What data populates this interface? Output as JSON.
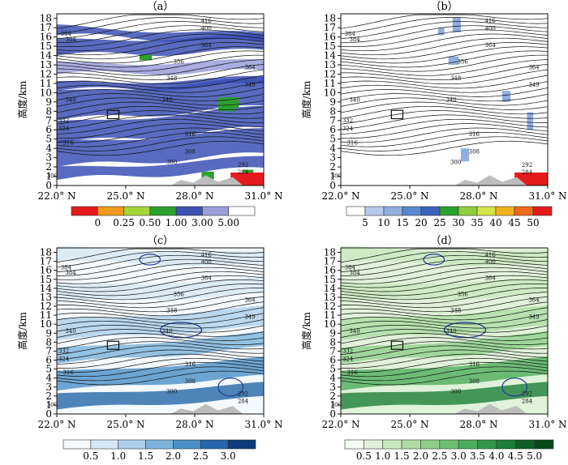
{
  "chart_data": [
    {
      "type": "heatmap",
      "panel_label": "（a）",
      "ylabel": "高度/km",
      "x_ticks": [
        "22.0° N",
        "25.0° N",
        "28.0° N",
        "31.0° N"
      ],
      "x_range": [
        22.0,
        31.0
      ],
      "y_ticks": [
        0,
        1,
        2,
        3,
        4,
        5,
        6,
        7,
        8,
        9,
        10,
        11,
        12,
        13,
        14,
        15,
        16,
        17,
        18
      ],
      "ylim": [
        0,
        18.5
      ],
      "colorbar": {
        "tick_labels": [
          "0",
          "0.25",
          "0.50",
          "1.00",
          "3.00",
          "5.00"
        ],
        "colors": [
          "#e41a1c",
          "#f29a1b",
          "#a6d43b",
          "#2ca02c",
          "#3c50b4",
          "#9a9fdb",
          "#ffffff"
        ]
      },
      "contour_labels": [
        "416",
        "400",
        "384",
        "384",
        "364",
        "356",
        "364",
        "348",
        "349",
        "340",
        "340",
        "332",
        "324",
        "316",
        "316",
        "308",
        "300",
        "292",
        "284",
        "300"
      ]
    },
    {
      "type": "heatmap",
      "panel_label": "（b）",
      "ylabel": "高度/km",
      "x_ticks": [
        "22.0° N",
        "25.0° N",
        "28.0° N",
        "31.0° N"
      ],
      "x_range": [
        22.0,
        31.0
      ],
      "y_ticks": [
        0,
        1,
        2,
        3,
        4,
        5,
        6,
        7,
        8,
        9,
        10,
        11,
        12,
        13,
        14,
        15,
        16,
        17,
        18
      ],
      "ylim": [
        0,
        18.5
      ],
      "colorbar": {
        "tick_labels": [
          "5",
          "10",
          "15",
          "20",
          "25",
          "30",
          "35",
          "40",
          "45",
          "50"
        ],
        "colors": [
          "#ffffff",
          "#b7c9ec",
          "#8eaee0",
          "#5b86d0",
          "#3a62b8",
          "#2ca02c",
          "#8fcf3c",
          "#d7e34a",
          "#f2b21b",
          "#ef6a1a",
          "#e41a1c"
        ]
      },
      "contour_labels": [
        "416",
        "400",
        "384",
        "384",
        "364",
        "356",
        "364",
        "348",
        "349",
        "340",
        "340",
        "332",
        "324",
        "316",
        "316",
        "308",
        "300",
        "292",
        "284",
        "300"
      ]
    },
    {
      "type": "heatmap",
      "panel_label": "（c）",
      "ylabel": "高度/km",
      "x_ticks": [
        "22.0° N",
        "25.0° N",
        "28.0° N",
        "31.0° N"
      ],
      "x_range": [
        22.0,
        31.0
      ],
      "y_ticks": [
        0,
        1,
        2,
        3,
        4,
        5,
        6,
        7,
        8,
        9,
        10,
        11,
        12,
        13,
        14,
        15,
        16,
        17,
        18
      ],
      "ylim": [
        0,
        18.5
      ],
      "colorbar": {
        "tick_labels": [
          "0.5",
          "1.0",
          "1.5",
          "2.0",
          "2.5",
          "3.0"
        ],
        "colors": [
          "#f4f9fd",
          "#d6e8f5",
          "#aed0ea",
          "#7bb3db",
          "#4a8fc7",
          "#2567a8",
          "#0c3a7a"
        ]
      },
      "contour_labels": [
        "416",
        "400",
        "384",
        "384",
        "364",
        "356",
        "364",
        "348",
        "349",
        "340",
        "340",
        "332",
        "324",
        "316",
        "316",
        "308",
        "300",
        "292",
        "284",
        "300"
      ]
    },
    {
      "type": "heatmap",
      "panel_label": "（d）",
      "ylabel": "高度/km",
      "x_ticks": [
        "22.0° N",
        "25.0° N",
        "28.0° N",
        "31.0° N"
      ],
      "x_range": [
        22.0,
        31.0
      ],
      "y_ticks": [
        0,
        1,
        2,
        3,
        4,
        5,
        6,
        7,
        8,
        9,
        10,
        11,
        12,
        13,
        14,
        15,
        16,
        17,
        18
      ],
      "ylim": [
        0,
        18.5
      ],
      "colorbar": {
        "tick_labels": [
          "0.5",
          "1.0",
          "1.5",
          "2.0",
          "2.5",
          "3.0",
          "3.5",
          "4.0",
          "4.5",
          "5.0"
        ],
        "colors": [
          "#f4fbf1",
          "#e0f2d9",
          "#c9e8bf",
          "#aedca4",
          "#8fcf89",
          "#6fbf70",
          "#4fad5b",
          "#339648",
          "#1d7d38",
          "#0d6028",
          "#064a1c"
        ]
      },
      "contour_labels": [
        "416",
        "400",
        "384",
        "384",
        "364",
        "356",
        "364",
        "348",
        "349",
        "340",
        "340",
        "332",
        "324",
        "316",
        "316",
        "308",
        "300",
        "292",
        "284",
        "300"
      ]
    }
  ]
}
